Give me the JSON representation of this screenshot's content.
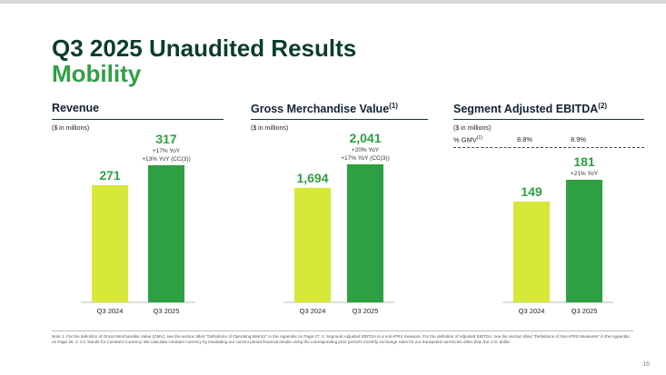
{
  "header": {
    "title_line1": "Q3 2025 Unaudited Results",
    "title_line2": "Mobility"
  },
  "colors": {
    "bar_2024": "#d6e83a",
    "bar_2025": "#2ea043",
    "value_green": "#2ea043",
    "title_dark": "#0b3d2c"
  },
  "panels": {
    "revenue": {
      "title": "Revenue",
      "unit": "($ in millions)"
    },
    "gmv": {
      "title": "Gross Merchandise Value",
      "title_sup": "(1)",
      "unit": "($ in millions)"
    },
    "ebitda": {
      "title": "Segment Adjusted EBITDA",
      "title_sup": "(2)",
      "unit": "($ in millions)",
      "gmv_label": "% GMV",
      "gmv_label_sup": "(1)",
      "gmv_values": [
        "8.8%",
        "8.9%"
      ]
    }
  },
  "chart_data": [
    {
      "type": "bar",
      "title": "Revenue",
      "categories": [
        "Q3 2024",
        "Q3 2025"
      ],
      "values": [
        271,
        317
      ],
      "value_labels": [
        "271",
        "317"
      ],
      "annotations": [
        [],
        [
          "+17% YoY",
          "+13% YoY (CC(3))"
        ]
      ]
    },
    {
      "type": "bar",
      "title": "Gross Merchandise Value",
      "categories": [
        "Q3 2024",
        "Q3 2025"
      ],
      "values": [
        1694,
        2041
      ],
      "value_labels": [
        "1,694",
        "2,041"
      ],
      "annotations": [
        [],
        [
          "+20% YoY",
          "+17% YoY (CC(3))"
        ]
      ]
    },
    {
      "type": "bar",
      "title": "Segment Adjusted EBITDA",
      "categories": [
        "Q3 2024",
        "Q3 2025"
      ],
      "values": [
        149,
        181
      ],
      "value_labels": [
        "149",
        "181"
      ],
      "annotations": [
        [],
        [
          "+21% YoY"
        ]
      ]
    }
  ],
  "footnote": "Note 1. For the definition of Gross Merchandise Value (GMV), see the section titled \"Definitions of Operating Metrics\" in the Appendix on Page 27. 2. Segment Adjusted EBITDA is a non-IFRS measure. For the definition of Adjusted EBITDA, see the section titled \"Definitions of Non-IFRS Measures\" in the Appendix on Page 28. 3. CC stands for Constant Currency. We calculate constant currency by translating our current period financial results using the corresponding prior period's monthly exchange rates for our transacted currencies other than the U.S. dollar.",
  "page_number": "16"
}
